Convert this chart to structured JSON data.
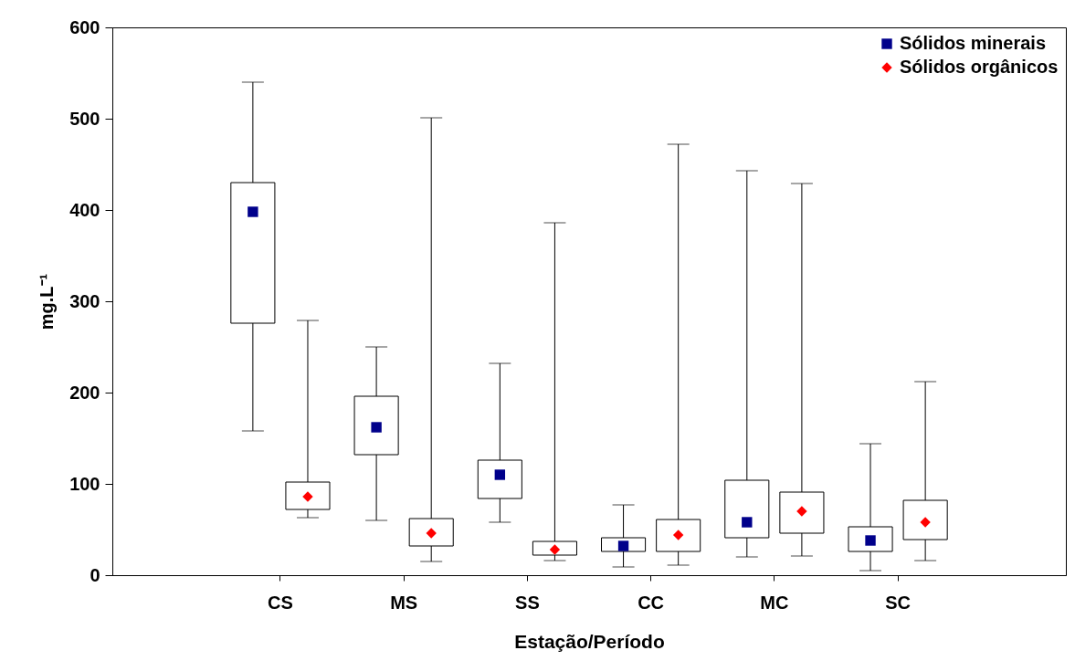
{
  "chart_data": {
    "type": "box",
    "xlabel": "Estação/Período",
    "ylabel": "mg.L⁻¹",
    "categories": [
      "CS",
      "MS",
      "SS",
      "CC",
      "MC",
      "SC"
    ],
    "ylim": [
      0,
      600
    ],
    "yticks": [
      0,
      100,
      200,
      300,
      400,
      500,
      600
    ],
    "legend": "top right",
    "series": [
      {
        "boxes": [
          {
            "low": 158,
            "q1": 276,
            "q3": 430,
            "high": 540
          },
          {
            "low": 60,
            "q1": 132,
            "q3": 196,
            "high": 250
          },
          {
            "low": 58,
            "q1": 84,
            "q3": 126,
            "high": 232
          },
          {
            "low": 9,
            "q1": 26,
            "q3": 41,
            "high": 77
          },
          {
            "low": 20,
            "q1": 41,
            "q3": 104,
            "high": 443
          },
          {
            "low": 5,
            "q1": 26,
            "q3": 53,
            "high": 144
          }
        ]
      },
      {
        "boxes": [
          {
            "low": 63,
            "q1": 72,
            "q3": 102,
            "high": 279
          },
          {
            "low": 15,
            "q1": 32,
            "q3": 62,
            "high": 501
          },
          {
            "low": 16,
            "q1": 22,
            "q3": 37,
            "high": 386
          },
          {
            "low": 11,
            "q1": 26,
            "q3": 61,
            "high": 472
          },
          {
            "low": 21,
            "q1": 46,
            "q3": 91,
            "high": 429
          },
          {
            "low": 16,
            "q1": 39,
            "q3": 82,
            "high": 212
          }
        ]
      },
      {
        "type": "scatter",
        "name": "Sólidos minerais",
        "color": "#00008b",
        "marker": "square",
        "x": [
          "CS",
          "MS",
          "SS",
          "CC",
          "MC",
          "SC"
        ],
        "values": [
          398,
          162,
          110,
          32,
          58,
          38
        ]
      },
      {
        "type": "scatter",
        "name": "Sólidos orgânicos",
        "color": "#ff0000",
        "marker": "diamond",
        "x": [
          "CS",
          "MS",
          "SS",
          "CC",
          "MC",
          "SC"
        ],
        "values": [
          86,
          46,
          28,
          44,
          70,
          58
        ]
      }
    ]
  }
}
